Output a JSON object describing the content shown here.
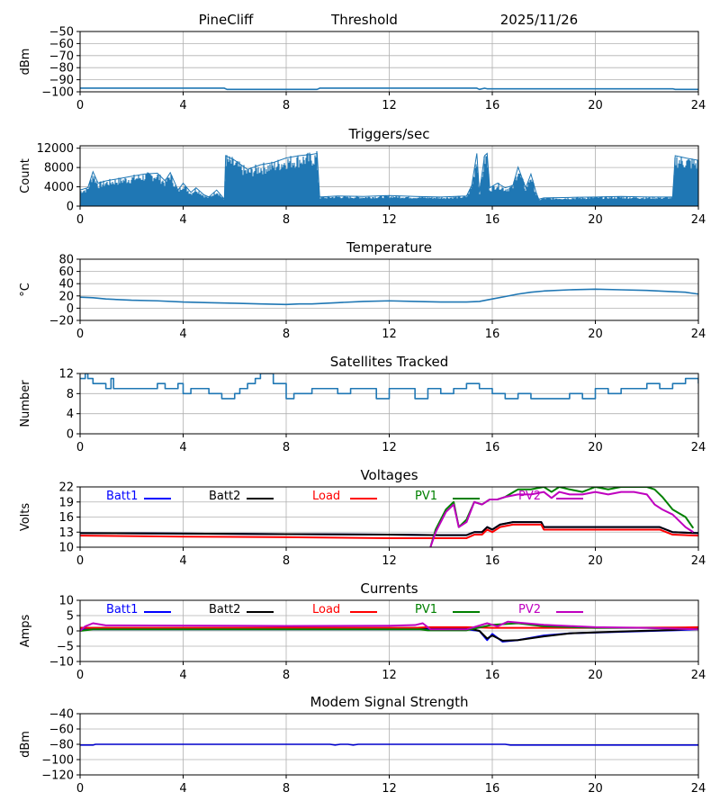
{
  "header": {
    "site": "PineCliff",
    "mode": "Threshold",
    "date": "2025/11/26"
  },
  "colors": {
    "series_blue": "#1f77b4",
    "grid": "#b0b0b0",
    "batt1": "#0000ff",
    "batt2": "#000000",
    "load": "#ff0000",
    "pv1": "#008000",
    "pv2": "#bf00bf",
    "modem": "#0000cc"
  },
  "chart_data": [
    {
      "id": "noise",
      "type": "line",
      "title": "",
      "xlabel": "",
      "ylabel": "dBm",
      "xlim": [
        0,
        24
      ],
      "ylim": [
        -100,
        -50
      ],
      "xticks": [
        0,
        4,
        8,
        12,
        16,
        20,
        24
      ],
      "yticks": [
        -100,
        -90,
        -80,
        -70,
        -60,
        -50
      ],
      "ytick_labels": [
        "−100",
        "−90",
        "−80",
        "−70",
        "−60",
        "−50"
      ],
      "series": [
        {
          "name": "dBm",
          "color": "#1f77b4",
          "x": [
            0,
            5.6,
            5.7,
            9.2,
            9.3,
            15.4,
            15.5,
            15.7,
            15.8,
            23.0,
            23.1,
            24
          ],
          "y": [
            -97,
            -97,
            -98,
            -98,
            -97,
            -97,
            -98,
            -97,
            -97.5,
            -97.5,
            -98,
            -98
          ]
        }
      ]
    },
    {
      "id": "triggers",
      "type": "area",
      "title": "Triggers/sec",
      "xlabel": "",
      "ylabel": "Count",
      "xlim": [
        0,
        24
      ],
      "ylim": [
        0,
        12500
      ],
      "xticks": [
        0,
        4,
        8,
        12,
        16,
        20,
        24
      ],
      "yticks": [
        0,
        4000,
        8000,
        12000
      ],
      "ytick_labels": [
        "0",
        "4000",
        "8000",
        "12000"
      ],
      "series": [
        {
          "name": "Count",
          "color": "#1f77b4",
          "x": [
            0,
            0.3,
            0.5,
            0.7,
            1.0,
            1.5,
            2.0,
            2.5,
            3.0,
            3.3,
            3.5,
            3.8,
            4.0,
            4.3,
            4.5,
            4.8,
            5.0,
            5.3,
            5.6,
            5.65,
            6.0,
            6.5,
            7.0,
            7.5,
            8.0,
            8.5,
            9.0,
            9.2,
            9.3,
            10,
            11,
            12,
            13,
            14,
            15.0,
            15.2,
            15.4,
            15.5,
            15.7,
            15.8,
            15.9,
            16.2,
            16.5,
            16.8,
            17.0,
            17.3,
            17.5,
            17.7,
            17.8,
            18,
            19,
            20,
            21,
            22,
            23.0,
            23.1,
            23.5,
            24
          ],
          "hi": [
            3500,
            4000,
            7500,
            5000,
            5500,
            6000,
            6500,
            7000,
            7200,
            5500,
            7300,
            3500,
            5000,
            3000,
            4000,
            2500,
            2000,
            3500,
            1500,
            11000,
            10000,
            8000,
            9000,
            9500,
            10500,
            11000,
            11300,
            11500,
            2000,
            2200,
            2100,
            2300,
            2100,
            2000,
            2200,
            4500,
            11500,
            3000,
            11000,
            11500,
            4000,
            5000,
            4000,
            4500,
            8500,
            4000,
            7000,
            3000,
            1500,
            1800,
            1900,
            2000,
            2100,
            2000,
            2000,
            11000,
            10500,
            10000
          ],
          "lo": [
            600,
            500,
            400,
            400,
            400,
            500,
            400,
            500,
            500,
            400,
            500,
            400,
            400,
            300,
            300,
            300,
            300,
            300,
            300,
            800,
            600,
            500,
            500,
            400,
            400,
            500,
            500,
            500,
            800,
            900,
            800,
            800,
            700,
            700,
            700,
            500,
            500,
            500,
            500,
            500,
            500,
            400,
            400,
            400,
            500,
            400,
            400,
            400,
            600,
            700,
            700,
            700,
            700,
            700,
            700,
            800,
            800,
            800
          ]
        }
      ]
    },
    {
      "id": "temperature",
      "type": "line",
      "title": "Temperature",
      "xlabel": "",
      "ylabel": "°C",
      "xlim": [
        0,
        24
      ],
      "ylim": [
        -20,
        80
      ],
      "xticks": [
        0,
        4,
        8,
        12,
        16,
        20,
        24
      ],
      "yticks": [
        -20,
        0,
        20,
        40,
        60,
        80
      ],
      "ytick_labels": [
        "−20",
        "0",
        "20",
        "40",
        "60",
        "80"
      ],
      "series": [
        {
          "name": "°C",
          "color": "#1f77b4",
          "x": [
            0,
            0.5,
            1,
            2,
            3,
            4,
            5,
            6,
            7,
            8,
            8.5,
            9,
            10,
            11,
            12,
            13,
            14,
            15,
            15.5,
            16,
            16.5,
            17,
            17.5,
            18,
            19,
            20,
            21,
            22,
            23,
            23.5,
            24
          ],
          "y": [
            18,
            17,
            15,
            13,
            12,
            10,
            9,
            8,
            7,
            6,
            7,
            7,
            9,
            11,
            12,
            11,
            10,
            10,
            11,
            15,
            19,
            23,
            26,
            28,
            30,
            31,
            30,
            29,
            27,
            26,
            23
          ]
        }
      ]
    },
    {
      "id": "satellites",
      "type": "line",
      "title": "Satellites Tracked",
      "xlabel": "",
      "ylabel": "Number",
      "xlim": [
        0,
        24
      ],
      "ylim": [
        0,
        12
      ],
      "xticks": [
        0,
        4,
        8,
        12,
        16,
        20,
        24
      ],
      "yticks": [
        0,
        4,
        8,
        12
      ],
      "ytick_labels": [
        "0",
        "4",
        "8",
        "12"
      ],
      "series": [
        {
          "name": "Number",
          "color": "#1f77b4",
          "x": [
            0,
            0.2,
            0.3,
            0.5,
            1.0,
            1.2,
            1.3,
            2.5,
            3.0,
            3.3,
            3.8,
            4.0,
            4.3,
            5.0,
            5.5,
            6.0,
            6.2,
            6.5,
            6.8,
            7.0,
            7.5,
            8.0,
            8.3,
            9.0,
            10.0,
            10.5,
            11.5,
            12.0,
            12.5,
            13.0,
            13.5,
            14.0,
            14.5,
            15.0,
            15.5,
            16.0,
            16.5,
            17.0,
            17.5,
            18.0,
            19.0,
            19.5,
            20.0,
            20.5,
            21.0,
            22.0,
            22.5,
            23.0,
            23.5,
            24
          ],
          "y": [
            11,
            12,
            11,
            10,
            9,
            11,
            9,
            9,
            10,
            9,
            10,
            8,
            9,
            8,
            7,
            8,
            9,
            10,
            11,
            12,
            10,
            7,
            8,
            9,
            8,
            9,
            7,
            9,
            9,
            7,
            9,
            8,
            9,
            10,
            9,
            8,
            7,
            8,
            7,
            7,
            8,
            7,
            9,
            8,
            9,
            10,
            9,
            10,
            11,
            10
          ]
        }
      ]
    },
    {
      "id": "voltages",
      "type": "line",
      "title": "Voltages",
      "xlabel": "",
      "ylabel": "Volts",
      "xlim": [
        0,
        24
      ],
      "ylim": [
        10,
        22
      ],
      "xticks": [
        0,
        4,
        8,
        12,
        16,
        20,
        24
      ],
      "yticks": [
        10,
        13,
        16,
        19,
        22
      ],
      "ytick_labels": [
        "10",
        "13",
        "16",
        "19",
        "22"
      ],
      "legend": [
        "Batt1",
        "Batt2",
        "Load",
        "PV1",
        "PV2"
      ],
      "series": [
        {
          "name": "Batt1",
          "color": "#0000ff",
          "x": [
            0,
            4,
            8,
            12,
            14,
            15,
            15.3,
            15.6,
            15.8,
            16.0,
            16.3,
            16.8,
            17.0,
            17.9,
            18.0,
            20,
            22,
            22.5,
            23,
            24
          ],
          "y": [
            12.8,
            12.7,
            12.6,
            12.5,
            12.4,
            12.4,
            13.0,
            13.0,
            14.0,
            13.5,
            14.5,
            15.0,
            15.0,
            15.0,
            14.0,
            14.0,
            14.0,
            14.0,
            13.0,
            12.8
          ]
        },
        {
          "name": "Batt2",
          "color": "#000000",
          "x": [
            0,
            4,
            8,
            12,
            14,
            15,
            15.3,
            15.6,
            15.8,
            16.0,
            16.3,
            16.8,
            17.0,
            17.9,
            18.0,
            20,
            22,
            22.5,
            23,
            24
          ],
          "y": [
            12.8,
            12.7,
            12.6,
            12.5,
            12.4,
            12.4,
            13.0,
            13.0,
            14.0,
            13.5,
            14.5,
            15.0,
            15.0,
            15.0,
            14.0,
            14.0,
            14.0,
            14.0,
            13.0,
            12.8
          ]
        },
        {
          "name": "Load",
          "color": "#ff0000",
          "x": [
            0,
            4,
            8,
            12,
            14,
            15,
            15.3,
            15.6,
            15.8,
            16.0,
            16.3,
            16.8,
            17.0,
            17.9,
            18.0,
            20,
            22,
            22.5,
            23,
            24
          ],
          "y": [
            12.3,
            12.1,
            12.0,
            11.8,
            11.8,
            11.8,
            12.5,
            12.5,
            13.5,
            13.0,
            14.0,
            14.5,
            14.5,
            14.5,
            13.5,
            13.5,
            13.5,
            13.5,
            12.5,
            12.3
          ]
        },
        {
          "name": "PV1",
          "color": "#008000",
          "x": [
            13.6,
            13.8,
            14.2,
            14.5,
            14.7,
            15.0,
            15.3,
            15.6,
            15.9,
            16.2,
            16.5,
            17.0,
            17.5,
            18.0,
            18.3,
            18.6,
            19,
            19.5,
            20,
            20.5,
            21,
            21.5,
            22,
            22.3,
            22.6,
            23.0,
            23.5,
            23.8
          ],
          "y": [
            10.0,
            13.5,
            17.5,
            19.0,
            14.0,
            15.5,
            19.0,
            18.5,
            19.5,
            19.5,
            20.0,
            21.5,
            21.5,
            22.0,
            21.0,
            22.0,
            21.5,
            21.0,
            22.0,
            21.5,
            22.0,
            22.0,
            22.0,
            21.5,
            20.0,
            17.5,
            16.0,
            13.8
          ]
        },
        {
          "name": "PV2",
          "color": "#bf00bf",
          "x": [
            13.6,
            13.8,
            14.2,
            14.5,
            14.7,
            15.0,
            15.3,
            15.6,
            15.9,
            16.2,
            16.5,
            17.0,
            17.5,
            18.0,
            18.3,
            18.6,
            19,
            19.5,
            20,
            20.5,
            21,
            21.5,
            22,
            22.3,
            22.6,
            23.0,
            23.5,
            23.8
          ],
          "y": [
            10.0,
            13.0,
            17.0,
            18.5,
            14.0,
            15.0,
            19.0,
            18.5,
            19.5,
            19.5,
            20.0,
            20.5,
            20.5,
            21.0,
            19.8,
            21.0,
            20.5,
            20.5,
            21.0,
            20.5,
            21.0,
            21.0,
            20.5,
            18.5,
            17.5,
            16.5,
            14.0,
            13.0
          ]
        }
      ]
    },
    {
      "id": "currents",
      "type": "line",
      "title": "Currents",
      "xlabel": "",
      "ylabel": "Amps",
      "xlim": [
        0,
        24
      ],
      "ylim": [
        -10,
        10
      ],
      "xticks": [
        0,
        4,
        8,
        12,
        16,
        20,
        24
      ],
      "yticks": [
        -10,
        -5,
        0,
        5,
        10
      ],
      "ytick_labels": [
        "−10",
        "−5",
        "0",
        "5",
        "10"
      ],
      "legend": [
        "Batt1",
        "Batt2",
        "Load",
        "PV1",
        "PV2"
      ],
      "series": [
        {
          "name": "Batt1",
          "color": "#0000ff",
          "x": [
            0,
            8,
            14,
            15.0,
            15.5,
            15.8,
            16.0,
            16.4,
            17.0,
            18.0,
            19,
            21,
            23,
            24
          ],
          "y": [
            0.5,
            0.5,
            0.5,
            0.5,
            0,
            -3.0,
            -1.0,
            -3.5,
            -3.0,
            -1.5,
            -0.8,
            -0.3,
            0.2,
            0.5
          ]
        },
        {
          "name": "Batt2",
          "color": "#000000",
          "x": [
            0,
            8,
            14,
            15.0,
            15.5,
            15.8,
            16.0,
            16.4,
            17.0,
            18.0,
            19,
            21,
            23,
            24
          ],
          "y": [
            1.0,
            1.0,
            1.0,
            1.0,
            0,
            -2.5,
            -1.5,
            -3.2,
            -3.0,
            -1.8,
            -0.8,
            -0.2,
            0.3,
            0.8
          ]
        },
        {
          "name": "Load",
          "color": "#ff0000",
          "x": [
            0,
            13,
            13.5,
            15,
            16,
            20,
            23,
            24
          ],
          "y": [
            1.0,
            1.0,
            1.2,
            1.2,
            1.0,
            1.0,
            1.1,
            1.2
          ]
        },
        {
          "name": "PV1",
          "color": "#008000",
          "x": [
            0,
            0.5,
            13.2,
            13.5,
            15,
            16,
            17,
            18,
            20,
            22,
            24
          ],
          "y": [
            0,
            0.5,
            0.5,
            0.2,
            0.2,
            2.0,
            2.5,
            1.5,
            1.0,
            1.0,
            0.5
          ]
        },
        {
          "name": "PV2",
          "color": "#bf00bf",
          "x": [
            0,
            0.2,
            0.5,
            1.0,
            6,
            8,
            12,
            13.0,
            13.3,
            13.6,
            15,
            15.8,
            16.2,
            16.6,
            18,
            20,
            22,
            24
          ],
          "y": [
            0,
            1.5,
            2.5,
            1.8,
            1.7,
            1.6,
            1.7,
            1.9,
            2.5,
            0.5,
            0.5,
            2.5,
            1.5,
            3.0,
            2.0,
            1.2,
            1.0,
            0.5
          ]
        }
      ]
    },
    {
      "id": "modem",
      "type": "line",
      "title": "Modem Signal Strength",
      "xlabel": "",
      "ylabel": "dBm",
      "xlim": [
        0,
        24
      ],
      "ylim": [
        -120,
        -40
      ],
      "xticks": [
        0,
        4,
        8,
        12,
        16,
        20,
        24
      ],
      "yticks": [
        -120,
        -100,
        -80,
        -60,
        -40
      ],
      "ytick_labels": [
        "−120",
        "−100",
        "−80",
        "−60",
        "−40"
      ],
      "series": [
        {
          "name": "dBm",
          "color": "#0000cc",
          "x": [
            0,
            0.5,
            0.6,
            9.7,
            9.9,
            10.1,
            10.4,
            10.6,
            10.8,
            16.5,
            16.7,
            24
          ],
          "y": [
            -81,
            -81,
            -80,
            -80,
            -81,
            -80,
            -80,
            -81,
            -80,
            -80,
            -81,
            -81
          ]
        }
      ]
    }
  ]
}
